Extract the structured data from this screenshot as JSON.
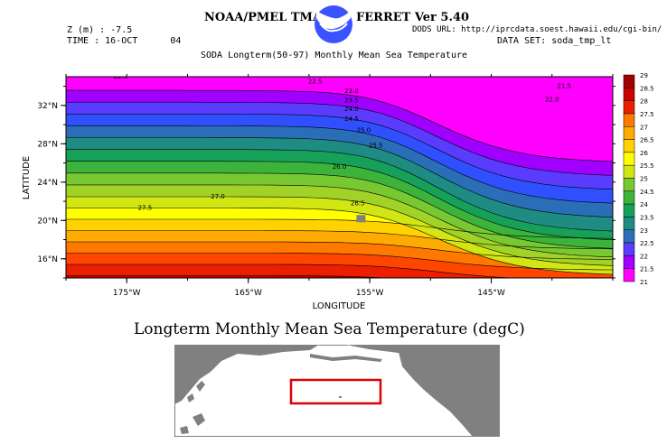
{
  "header": {
    "left_title": "NOAA/PMEL TMAP",
    "right_title": "FERRET Ver 5.40",
    "z_line": "Z (m) : -7.5",
    "time_line": "TIME : 16-OCT      04",
    "dods_url": "DODS URL: http://iprcdata.soest.hawaii.edu/cgi-bin/",
    "data_set": "DATA SET: soda_tmp_lt",
    "plot_title": "SODA Longterm(50-97) Monthly Mean Sea Temperature"
  },
  "main_title": "Longterm Monthly Mean Sea Temperature (degC)",
  "colors": {
    "bands": [
      "#ff00ff",
      "#a000ff",
      "#5a3cff",
      "#3050ff",
      "#2a6eb8",
      "#1e8c82",
      "#16a05a",
      "#3cb43c",
      "#78c832",
      "#a0d228",
      "#d2e614",
      "#ffff00",
      "#ffd200",
      "#ffaa00",
      "#ff7800",
      "#ff4600",
      "#eb1e00",
      "#cd0000",
      "#a00000"
    ],
    "map_land": "#808080",
    "map_box": "#e00000"
  },
  "chart_data": {
    "type": "heatmap",
    "xlabel": "LONGITUDE",
    "ylabel": "LATITUDE",
    "xlim": [
      -180,
      -135
    ],
    "ylim": [
      14,
      35
    ],
    "x_ticks": [
      {
        "value": -175,
        "label": "175°W"
      },
      {
        "value": -165,
        "label": "165°W"
      },
      {
        "value": -155,
        "label": "155°W"
      },
      {
        "value": -145,
        "label": "145°W"
      }
    ],
    "y_ticks": [
      {
        "value": 16,
        "label": "16°N"
      },
      {
        "value": 20,
        "label": "20°N"
      },
      {
        "value": 24,
        "label": "24°N"
      },
      {
        "value": 28,
        "label": "28°N"
      },
      {
        "value": 32,
        "label": "32°N"
      }
    ],
    "colorbar": {
      "levels": [
        21,
        21.5,
        22,
        22.5,
        23,
        23.5,
        24,
        24.5,
        25,
        25.5,
        26,
        26.5,
        27,
        27.5,
        28,
        28.5,
        29
      ],
      "labels": [
        "21",
        "21.5",
        "22",
        "22.5",
        "23",
        "23.5",
        "24",
        "24.5",
        "25",
        "25.5",
        "26",
        "26.5",
        "27",
        "27.5",
        "28",
        "28.5",
        "29"
      ]
    },
    "contour_labels": [
      {
        "text": "22.0",
        "lon": -175.5,
        "lat": 34.8
      },
      {
        "text": "22.5",
        "lon": -159.5,
        "lat": 34.3
      },
      {
        "text": "23.0",
        "lon": -156.5,
        "lat": 33.3
      },
      {
        "text": "23.5",
        "lon": -156.5,
        "lat": 32.3
      },
      {
        "text": "24.0",
        "lon": -156.5,
        "lat": 31.4
      },
      {
        "text": "24.5",
        "lon": -156.5,
        "lat": 30.4
      },
      {
        "text": "25.0",
        "lon": -155.5,
        "lat": 29.2
      },
      {
        "text": "25.5",
        "lon": -154.5,
        "lat": 27.6
      },
      {
        "text": "26.0",
        "lon": -157.5,
        "lat": 25.4
      },
      {
        "text": "26.5",
        "lon": -156.0,
        "lat": 21.6
      },
      {
        "text": "27.0",
        "lon": -167.5,
        "lat": 22.3
      },
      {
        "text": "27.5",
        "lon": -173.5,
        "lat": 21.1
      },
      {
        "text": "21.5",
        "lon": -139.0,
        "lat": 33.8
      },
      {
        "text": "22.0",
        "lon": -140.0,
        "lat": 32.4
      }
    ]
  }
}
